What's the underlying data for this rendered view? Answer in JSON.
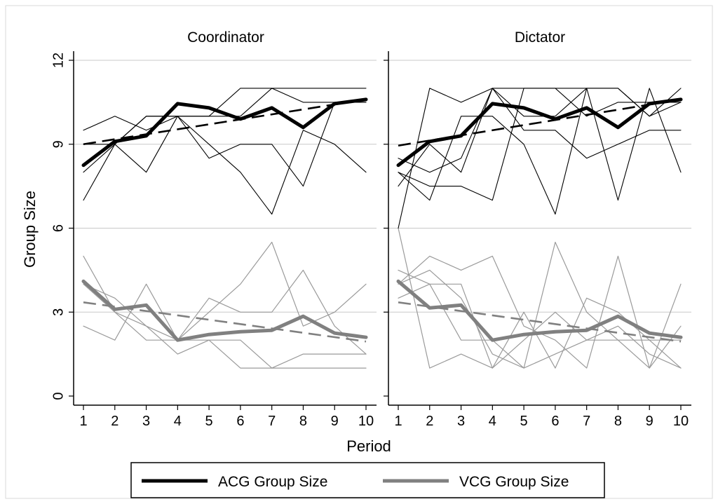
{
  "chart_data": {
    "type": "line",
    "ylabel": "Group Size",
    "xlabel": "Period",
    "ylim": [
      0,
      12
    ],
    "yticks": [
      0,
      3,
      6,
      9,
      12
    ],
    "x": [
      1,
      2,
      3,
      4,
      5,
      6,
      7,
      8,
      9,
      10
    ],
    "xtick_labels": [
      "1",
      "2",
      "3",
      "4",
      "5",
      "6",
      "7",
      "8",
      "9",
      "10"
    ],
    "ytick_labels": [
      "0",
      "3",
      "6",
      "9",
      "12"
    ],
    "legend": [
      {
        "label": "ACG Group Size",
        "color": "#000000"
      },
      {
        "label": "VCG Group Size",
        "color": "#808080"
      }
    ],
    "panels": [
      {
        "title": "Coordinator",
        "acg_mean": [
          8.25,
          9.1,
          9.3,
          10.45,
          10.3,
          9.9,
          10.3,
          9.6,
          10.45,
          10.6
        ],
        "acg_trend": [
          9.0,
          10.6
        ],
        "vcg_mean": [
          4.1,
          3.1,
          3.25,
          2.0,
          2.2,
          2.3,
          2.35,
          2.85,
          2.25,
          2.1
        ],
        "vcg_trend": [
          3.35,
          1.95
        ],
        "acg_groups": [
          [
            9.5,
            10.0,
            9.5,
            10.0,
            10.0,
            11.0,
            11.0,
            11.0,
            11.0,
            11.0
          ],
          [
            8.0,
            9.0,
            10.0,
            10.0,
            9.0,
            8.0,
            6.5,
            9.5,
            9.0,
            8.0
          ],
          [
            7.0,
            9.0,
            8.0,
            10.0,
            8.5,
            9.0,
            9.0,
            7.5,
            10.5,
            10.5
          ],
          [
            9.0,
            9.0,
            10.0,
            10.0,
            10.0,
            10.0,
            11.0,
            10.5,
            10.5,
            10.5
          ]
        ],
        "vcg_groups": [
          [
            5.0,
            3.0,
            2.5,
            2.0,
            3.5,
            3.0,
            3.0,
            4.5,
            2.5,
            1.5
          ],
          [
            2.5,
            2.0,
            4.0,
            2.0,
            2.0,
            1.0,
            1.0,
            1.5,
            1.5,
            1.5
          ],
          [
            4.0,
            3.0,
            2.0,
            2.0,
            3.0,
            4.0,
            5.5,
            2.5,
            3.0,
            4.0
          ],
          [
            4.0,
            3.5,
            2.5,
            1.5,
            2.0,
            2.0,
            1.0,
            1.0,
            1.0,
            1.0
          ]
        ]
      },
      {
        "title": "Dictator",
        "acg_mean": [
          8.25,
          9.1,
          9.3,
          10.45,
          10.3,
          9.9,
          10.3,
          9.6,
          10.45,
          10.6
        ],
        "acg_trend": [
          8.95,
          10.6
        ],
        "vcg_mean": [
          4.1,
          3.15,
          3.25,
          2.0,
          2.2,
          2.3,
          2.35,
          2.85,
          2.25,
          2.1
        ],
        "vcg_trend": [
          3.35,
          1.95
        ],
        "acg_groups": [
          [
            6.0,
            11.0,
            10.5,
            11.0,
            11.0,
            11.0,
            11.0,
            11.0,
            10.0,
            11.0
          ],
          [
            8.0,
            7.0,
            10.0,
            10.0,
            9.0,
            6.5,
            11.0,
            7.0,
            11.0,
            8.0
          ],
          [
            7.5,
            9.0,
            8.0,
            11.0,
            9.5,
            9.5,
            8.5,
            9.0,
            9.5,
            9.5
          ],
          [
            8.0,
            7.5,
            7.5,
            7.0,
            11.0,
            11.0,
            10.0,
            10.5,
            10.5,
            10.5
          ],
          [
            8.5,
            8.0,
            8.5,
            11.0,
            10.0,
            10.0,
            11.0,
            11.0,
            10.0,
            10.5
          ]
        ],
        "vcg_groups": [
          [
            6.0,
            1.0,
            1.5,
            1.0,
            3.0,
            1.0,
            3.5,
            3.0,
            2.0,
            1.0
          ],
          [
            4.5,
            4.0,
            2.0,
            2.0,
            1.0,
            5.5,
            3.0,
            2.0,
            1.0,
            4.0
          ],
          [
            4.0,
            5.0,
            4.5,
            5.0,
            2.5,
            2.0,
            1.0,
            5.0,
            1.0,
            2.5
          ],
          [
            3.5,
            4.0,
            4.0,
            1.0,
            2.0,
            3.0,
            2.0,
            2.0,
            2.0,
            2.0
          ],
          [
            4.0,
            4.5,
            3.5,
            1.5,
            1.0,
            1.5,
            2.0,
            2.5,
            1.5,
            1.0
          ]
        ]
      }
    ]
  }
}
